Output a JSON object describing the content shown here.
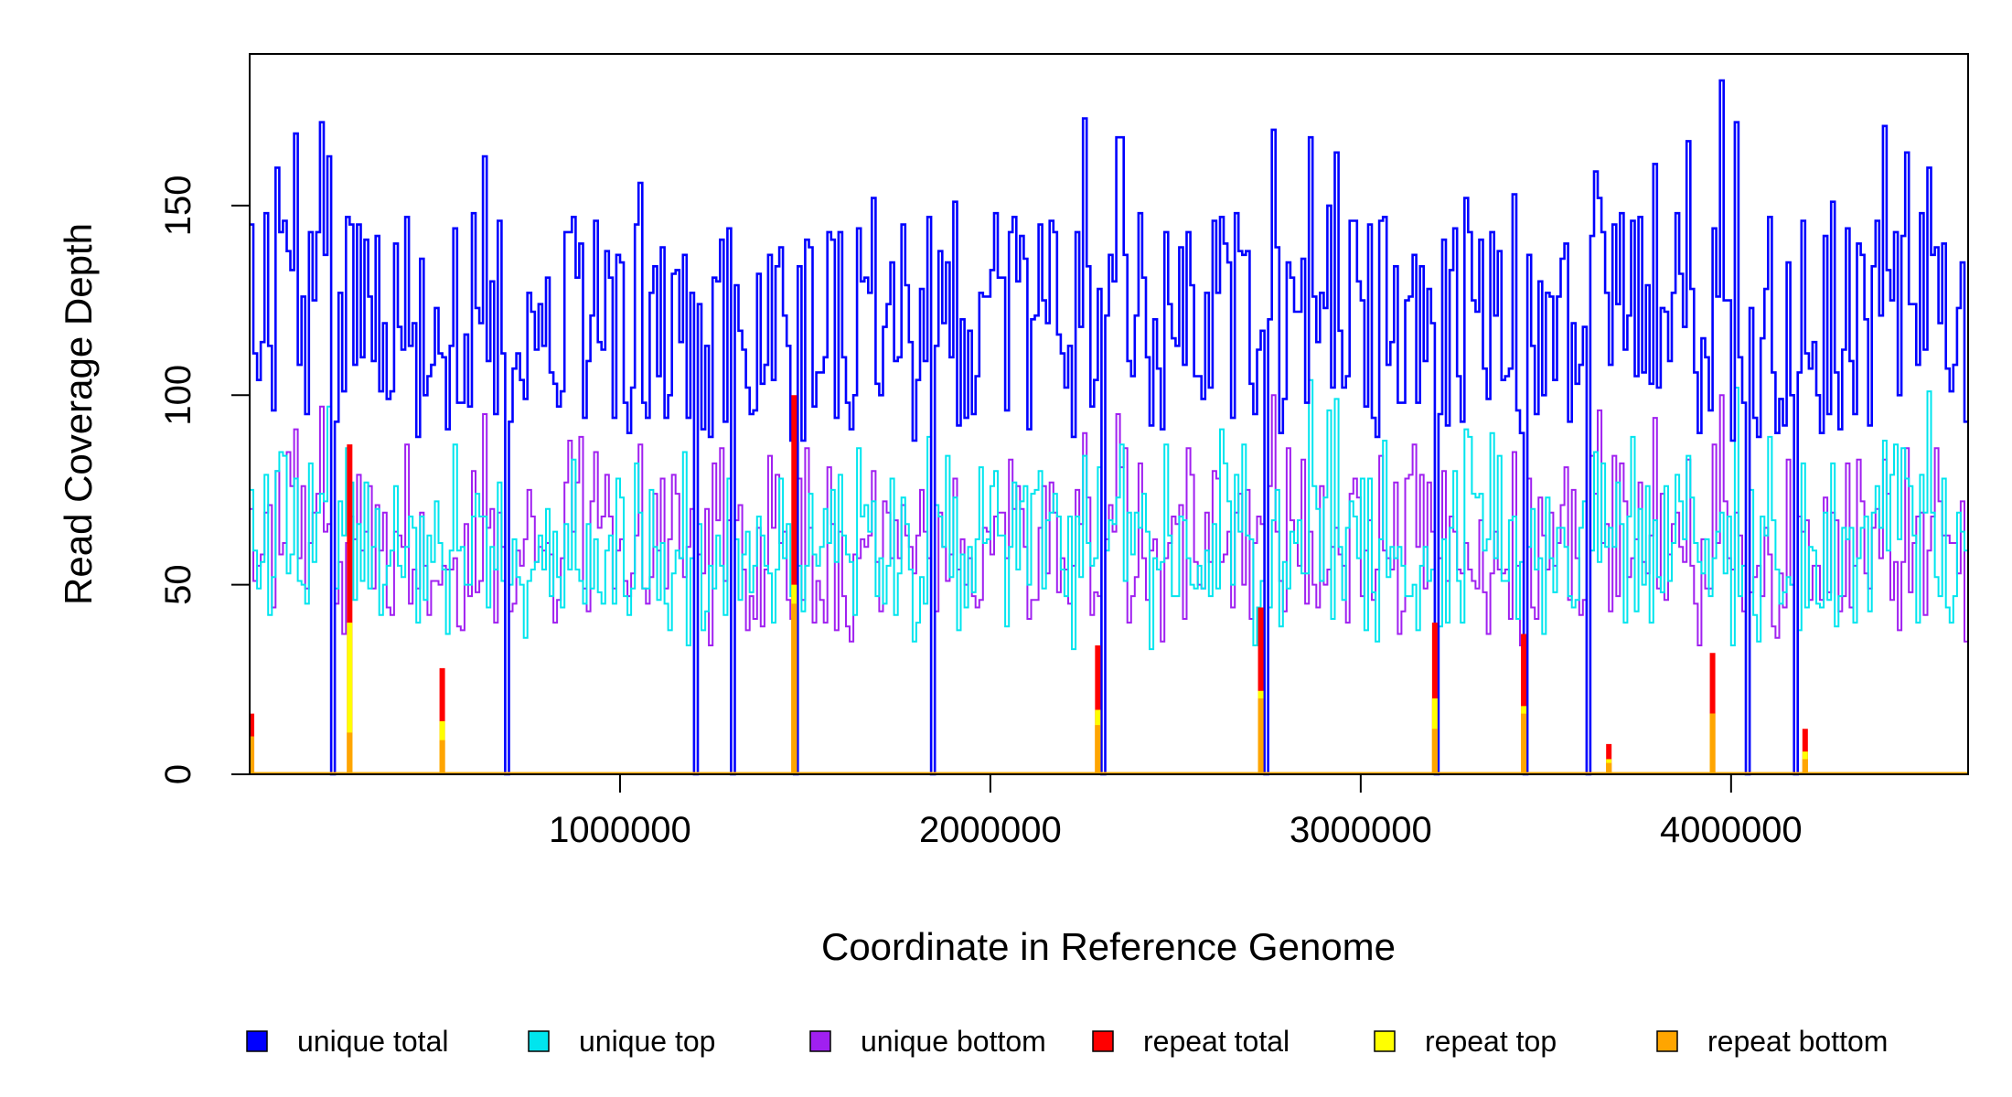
{
  "chart_data": {
    "type": "line",
    "title": "",
    "xlabel": "Coordinate in Reference Genome",
    "ylabel": "Read Coverage Depth",
    "xlim": [
      0,
      4640000
    ],
    "ylim": [
      0,
      190
    ],
    "x_ticks": [
      1000000,
      2000000,
      3000000,
      4000000
    ],
    "x_tick_labels": [
      "1000000",
      "2000000",
      "3000000",
      "4000000"
    ],
    "y_ticks": [
      0,
      50,
      100,
      150
    ],
    "y_tick_labels": [
      "0",
      "50",
      "100",
      "150"
    ],
    "grid": false,
    "legend_position": "bottom",
    "bin_size": 10000,
    "series": [
      {
        "name": "unique total",
        "color": "#0000ff",
        "style": "step",
        "summary": {
          "typical_min": 85,
          "typical_max": 185
        },
        "dropouts_to_zero": [
          220000,
          690000,
          1200000,
          1300000,
          1470000,
          1840000,
          2300000,
          2740000,
          3200000,
          3440000,
          3610000,
          4040000,
          4170000
        ]
      },
      {
        "name": "unique top",
        "color": "#00e5ee",
        "style": "step",
        "summary": {
          "typical_min": 30,
          "typical_max": 105
        }
      },
      {
        "name": "unique bottom",
        "color": "#a020f0",
        "style": "step",
        "summary": {
          "typical_min": 25,
          "typical_max": 100
        }
      },
      {
        "name": "repeat total",
        "color": "#ff0000",
        "style": "spikes",
        "points": [
          [
            5000,
            16
          ],
          [
            270000,
            87
          ],
          [
            520000,
            28
          ],
          [
            1470000,
            100
          ],
          [
            2290000,
            34
          ],
          [
            2730000,
            44
          ],
          [
            3200000,
            40
          ],
          [
            3440000,
            37
          ],
          [
            3670000,
            8
          ],
          [
            3950000,
            32
          ],
          [
            4200000,
            12
          ]
        ]
      },
      {
        "name": "repeat top",
        "color": "#ffff00",
        "style": "spikes",
        "points": [
          [
            5000,
            8
          ],
          [
            270000,
            40
          ],
          [
            520000,
            14
          ],
          [
            1470000,
            50
          ],
          [
            2290000,
            17
          ],
          [
            2730000,
            22
          ],
          [
            3200000,
            20
          ],
          [
            3440000,
            18
          ],
          [
            3670000,
            4
          ],
          [
            3950000,
            16
          ],
          [
            4200000,
            6
          ]
        ]
      },
      {
        "name": "repeat bottom",
        "color": "#ffa500",
        "style": "spikes",
        "points": [
          [
            5000,
            10
          ],
          [
            270000,
            11
          ],
          [
            520000,
            9
          ],
          [
            1470000,
            45
          ],
          [
            2290000,
            13
          ],
          [
            2730000,
            20
          ],
          [
            3200000,
            12
          ],
          [
            3440000,
            16
          ],
          [
            3670000,
            3
          ],
          [
            3950000,
            16
          ],
          [
            4200000,
            4
          ]
        ]
      }
    ]
  }
}
